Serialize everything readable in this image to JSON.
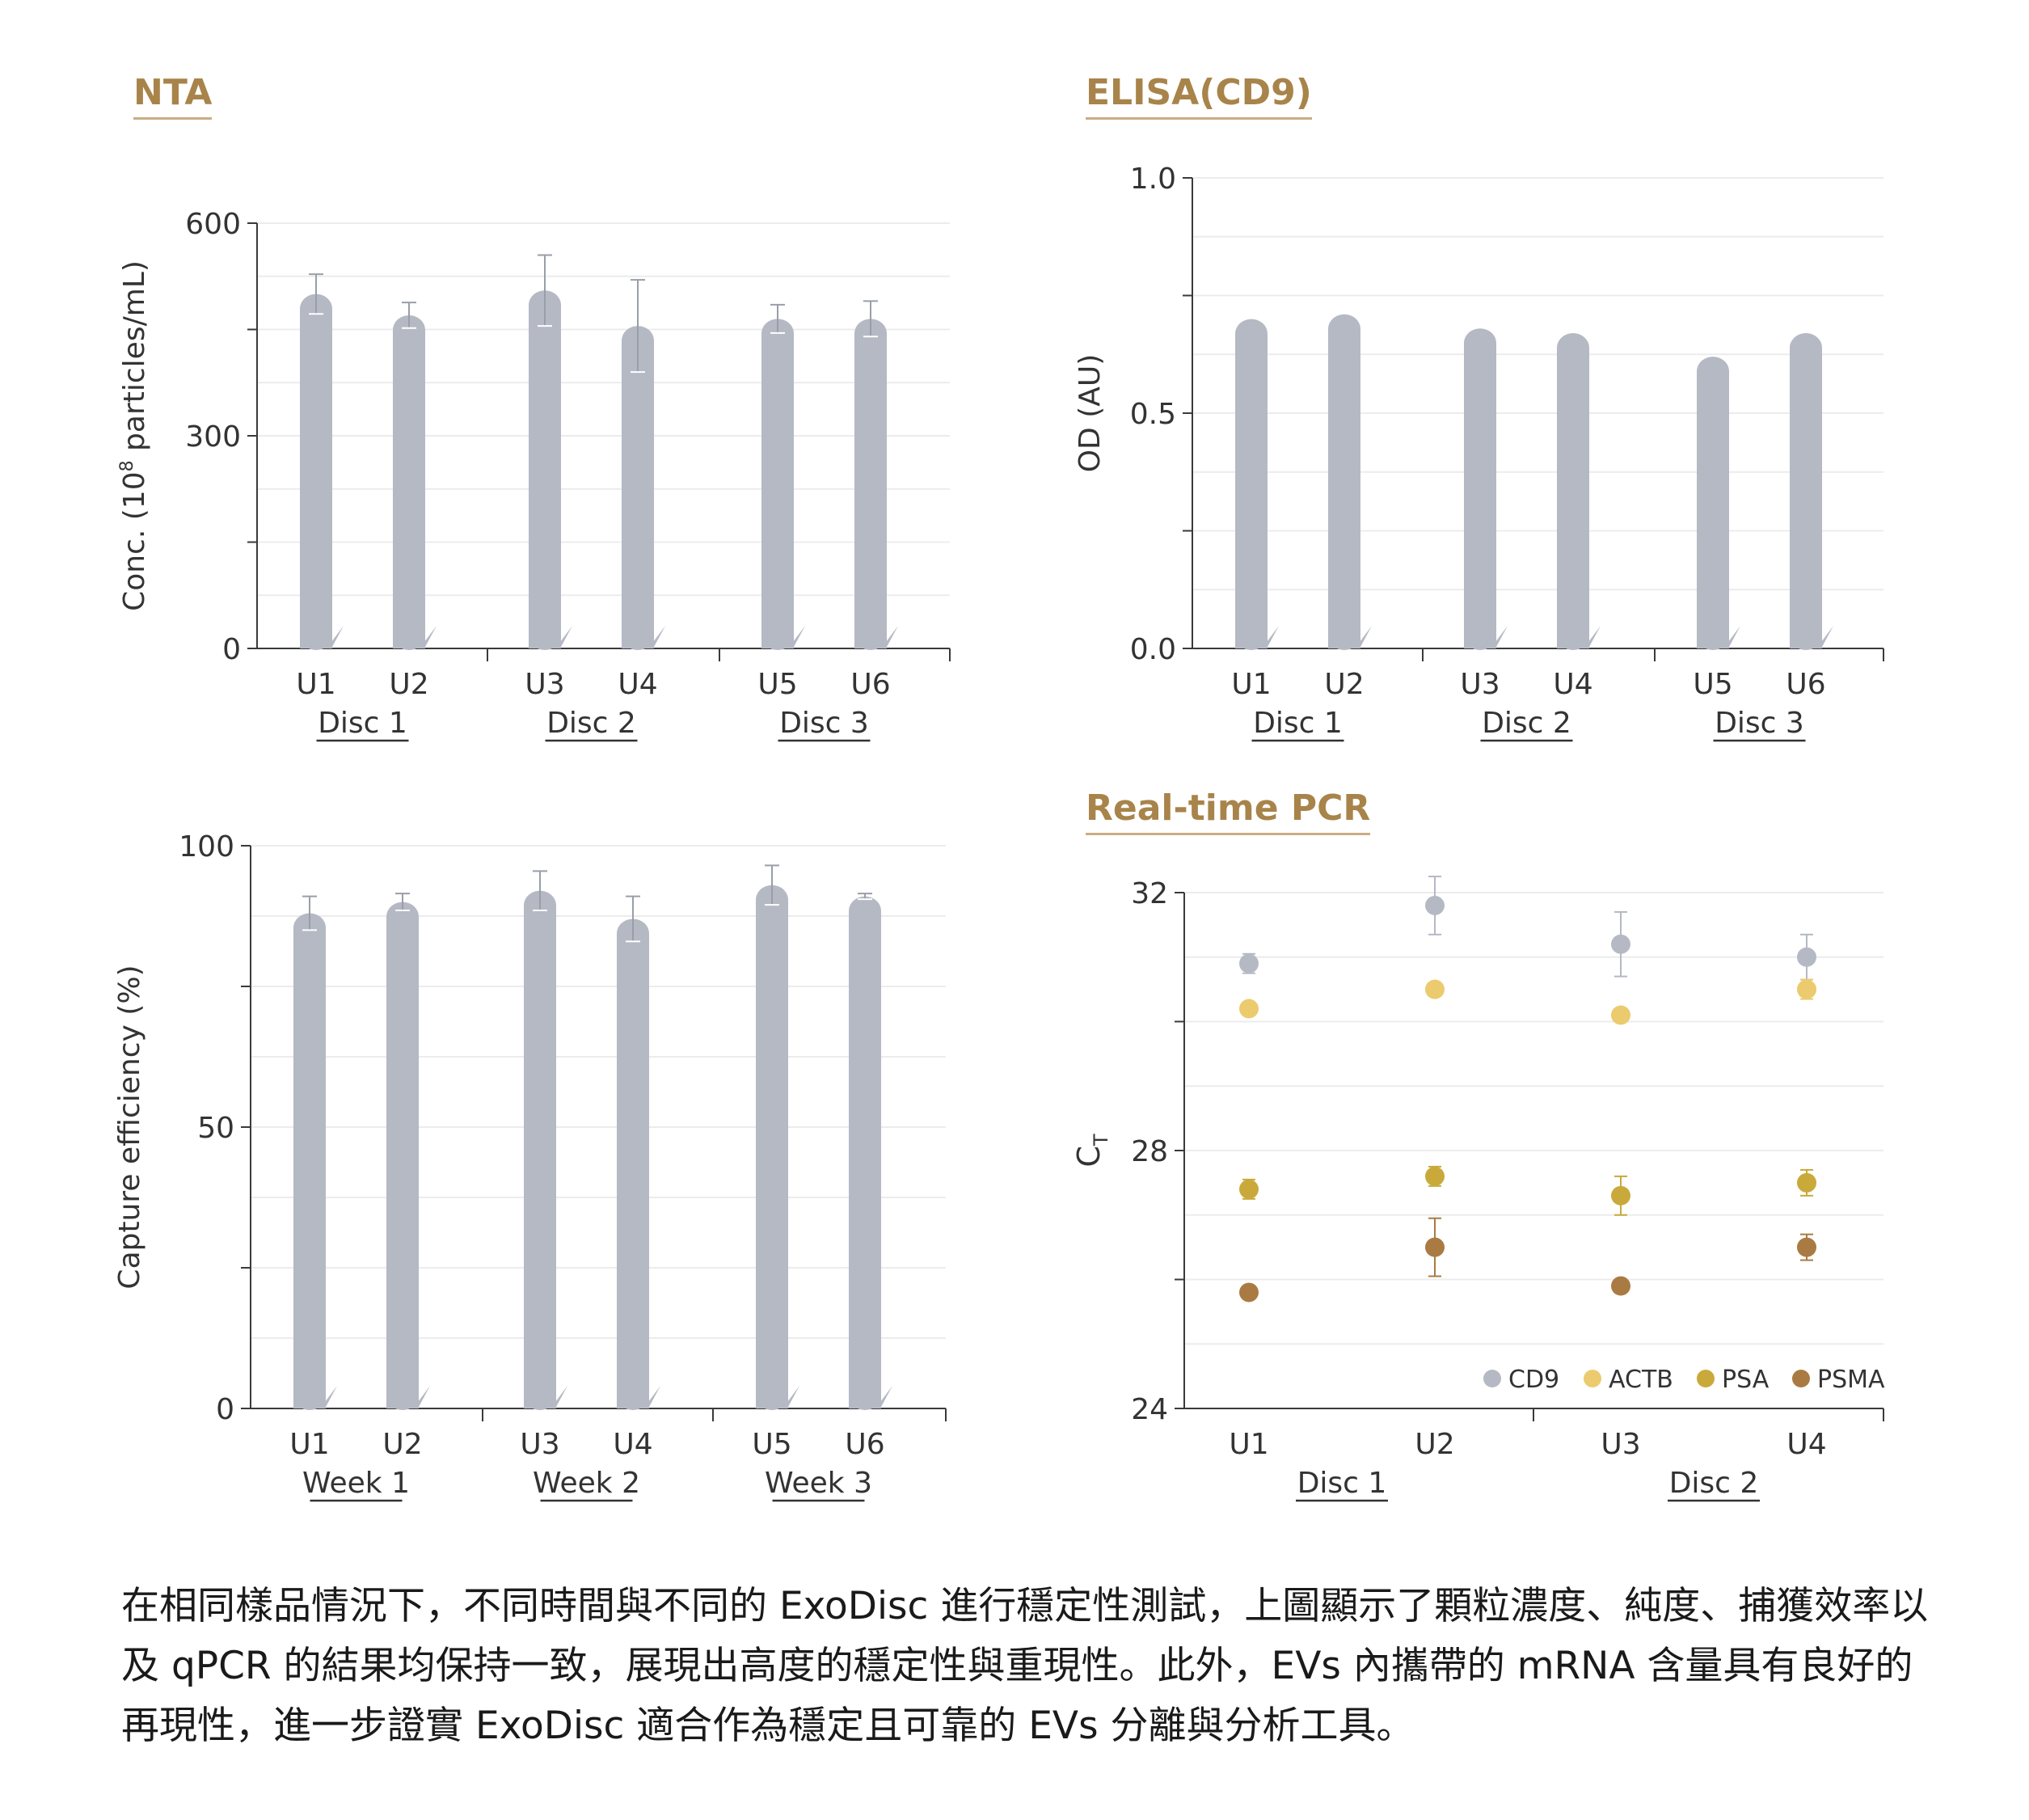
{
  "panels": {
    "nta": "NTA",
    "elisa": "ELISA(CD9)",
    "pcr": "Real-time PCR"
  },
  "caption": "在相同樣品情況下，不同時間與不同的 ExoDisc 進行穩定性測試，上圖顯示了顆粒濃度、純度、捕獲效率以及 qPCR 的結果均保持一致，展現出高度的穩定性與重現性。此外，EVs 內攜帶的 mRNA 含量具有良好的再現性，進一步證實 ExoDisc 適合作為穩定且可靠的 EVs 分離與分析工具。",
  "colors": {
    "bar": "#b5b9c4",
    "title": "#a8844a",
    "CD9": "#b5b9c4",
    "ACTB": "#ebcb6e",
    "PSA": "#c9a93a",
    "PSMA": "#a97b43"
  },
  "chart_data": [
    {
      "id": "nta",
      "type": "bar",
      "ylabel_main": "Conc. (10",
      "ylabel_sup": "8",
      "ylabel_rest": " particles/mL)",
      "yticks": [
        "0",
        "300",
        "600"
      ],
      "ylim": [
        0,
        600
      ],
      "categories": [
        "U1",
        "U2",
        "U3",
        "U4",
        "U5",
        "U6"
      ],
      "groups": [
        "Disc 1",
        "Disc 2",
        "Disc 3"
      ],
      "values": [
        500,
        470,
        505,
        455,
        465,
        465
      ],
      "errors": [
        28,
        18,
        50,
        65,
        20,
        25
      ]
    },
    {
      "id": "elisa",
      "type": "bar",
      "ylabel": "OD (AU)",
      "yticks": [
        "0.0",
        "0.5",
        "1.0"
      ],
      "ylim": [
        0,
        1
      ],
      "categories": [
        "U1",
        "U2",
        "U3",
        "U4",
        "U5",
        "U6"
      ],
      "groups": [
        "Disc 1",
        "Disc 2",
        "Disc 3"
      ],
      "values": [
        0.7,
        0.71,
        0.68,
        0.67,
        0.62,
        0.67
      ],
      "errors": [
        0,
        0,
        0,
        0,
        0,
        0
      ]
    },
    {
      "id": "capture",
      "type": "bar",
      "ylabel": "Capture efficiency (%)",
      "yticks": [
        "0",
        "50",
        "100"
      ],
      "ylim": [
        0,
        100
      ],
      "categories": [
        "U1",
        "U2",
        "U3",
        "U4",
        "U5",
        "U6"
      ],
      "groups": [
        "Week 1",
        "Week 2",
        "Week 3"
      ],
      "values": [
        88,
        90,
        92,
        87,
        93,
        91
      ],
      "errors": [
        3,
        1.5,
        3.5,
        4,
        3.5,
        0.5
      ]
    },
    {
      "id": "pcr",
      "type": "scatter",
      "ylabel": "C",
      "ylabel_sub": "T",
      "yticks": [
        "24",
        "28",
        "32"
      ],
      "ylim": [
        24,
        32
      ],
      "categories": [
        "U1",
        "U2",
        "U3",
        "U4"
      ],
      "groups": [
        "Disc 1",
        "Disc 2"
      ],
      "series": [
        {
          "name": "CD9",
          "values": [
            30.9,
            31.8,
            31.2,
            31.0
          ],
          "errors": [
            0.15,
            0.45,
            0.5,
            0.35
          ]
        },
        {
          "name": "ACTB",
          "values": [
            30.2,
            30.5,
            30.1,
            30.5
          ],
          "errors": [
            0.1,
            0.1,
            0.1,
            0.15
          ]
        },
        {
          "name": "PSA",
          "values": [
            27.4,
            27.6,
            27.3,
            27.5
          ],
          "errors": [
            0.15,
            0.15,
            0.3,
            0.2
          ]
        },
        {
          "name": "PSMA",
          "values": [
            25.8,
            26.5,
            25.9,
            26.5
          ],
          "errors": [
            0.1,
            0.45,
            0.1,
            0.2
          ]
        }
      ],
      "legend_position": "bottom-right"
    }
  ]
}
